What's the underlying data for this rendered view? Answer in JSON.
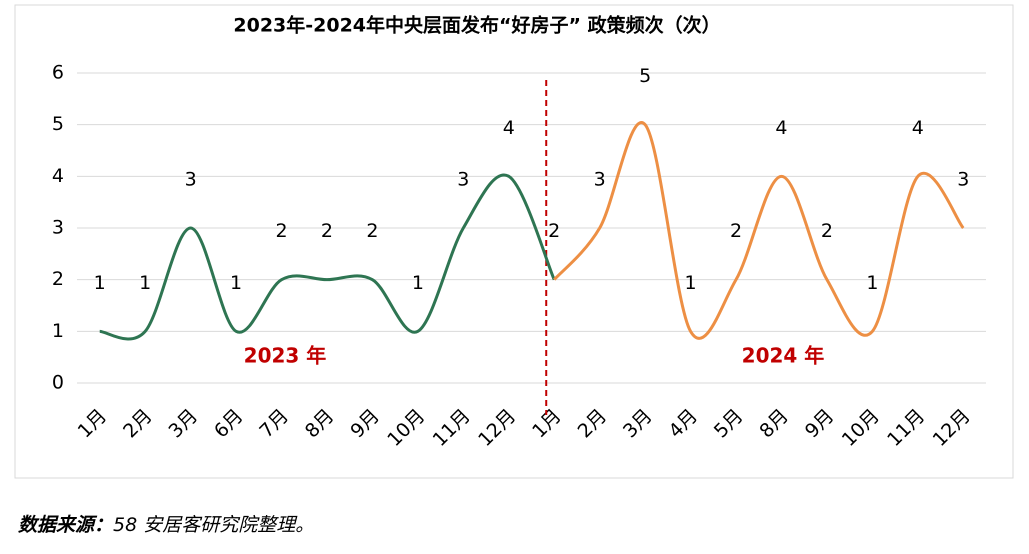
{
  "chart_data": {
    "type": "line",
    "title": "2023年-2024年中央层面发布“好房子” 政策频次（次）",
    "categories": [
      "1月",
      "2月",
      "3月",
      "6月",
      "7月",
      "8月",
      "9月",
      "10月",
      "11月",
      "12月",
      "1月",
      "2月",
      "3月",
      "4月",
      "5月",
      "8月",
      "9月",
      "10月",
      "11月",
      "12月"
    ],
    "series": [
      {
        "name": "2023 年",
        "color": "#2e7552",
        "values": [
          1,
          1,
          3,
          1,
          2,
          2,
          2,
          1,
          3,
          4,
          2,
          null,
          null,
          null,
          null,
          null,
          null,
          null,
          null,
          null
        ]
      },
      {
        "name": "2024 年",
        "color": "#ed8f44",
        "values": [
          null,
          null,
          null,
          null,
          null,
          null,
          null,
          null,
          null,
          null,
          2,
          3,
          5,
          1,
          2,
          4,
          2,
          1,
          4,
          3
        ]
      }
    ],
    "ylim": [
      0,
      6
    ],
    "yticks": [
      0,
      1,
      2,
      3,
      4,
      5,
      6
    ],
    "grid": true,
    "source_label": "数据来源：",
    "source_text": "58 安居客研究院整理。"
  }
}
